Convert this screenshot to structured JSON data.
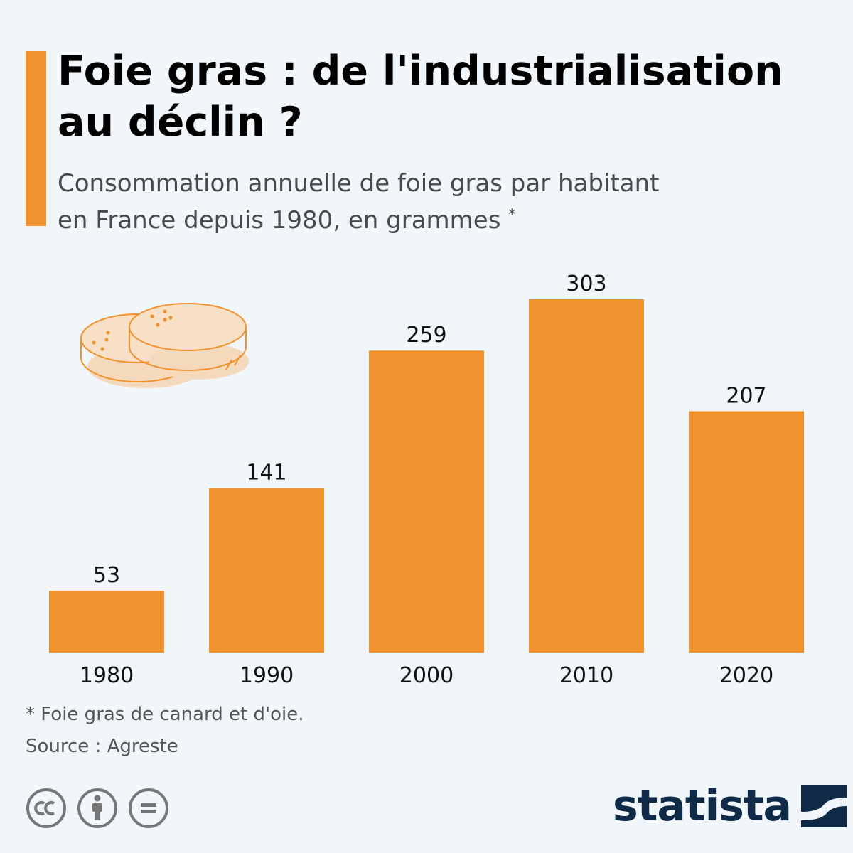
{
  "header": {
    "title": "Foie gras : de l'industrialisation au déclin ?",
    "subtitle_line1": "Consommation annuelle de foie gras par habitant",
    "subtitle_line2": "en France depuis 1980, en grammes",
    "subtitle_mark": "*"
  },
  "chart_data": {
    "type": "bar",
    "title": "Foie gras : de l'industrialisation au déclin ?",
    "subtitle": "Consommation annuelle de foie gras par habitant en France depuis 1980, en grammes *",
    "categories": [
      "1980",
      "1990",
      "2000",
      "2010",
      "2020"
    ],
    "values": [
      53,
      141,
      259,
      303,
      207
    ],
    "xlabel": "",
    "ylabel": "",
    "ylim": [
      0,
      303
    ],
    "grid": false,
    "data_labels": true,
    "bar_color": "#f0922e"
  },
  "footer": {
    "footnote": "* Foie gras de canard et d'oie.",
    "source": "Source : Agreste",
    "licenses": [
      "cc-icon",
      "by-icon",
      "nd-icon"
    ],
    "brand": "statista"
  },
  "colors": {
    "accent": "#f0922e",
    "background": "#f1f6fa",
    "brand_dark": "#0e2a47"
  }
}
